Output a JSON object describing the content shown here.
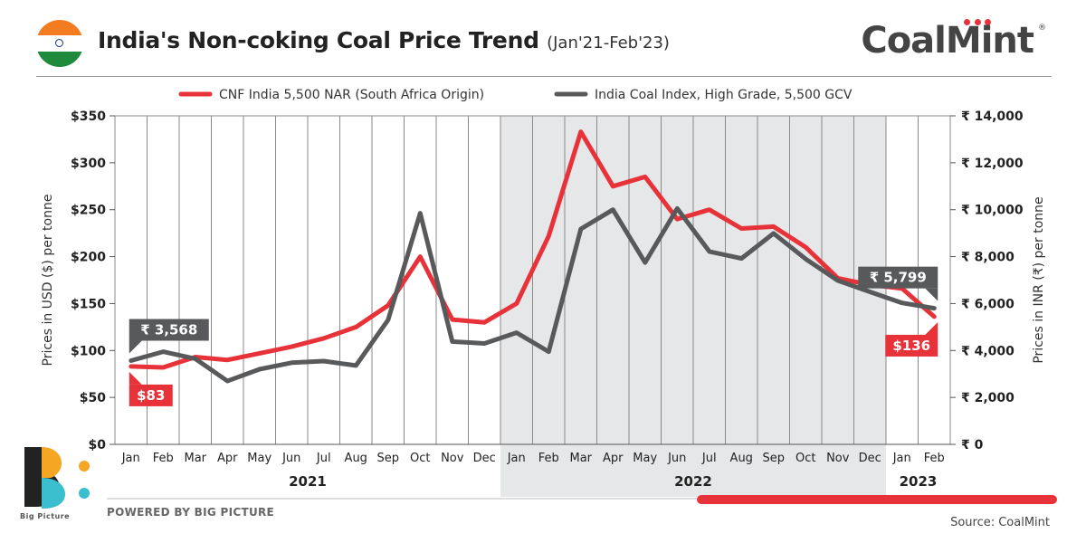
{
  "header": {
    "title": "India's Non-coking Coal Price Trend",
    "subtitle": "(Jan'21-Feb'23)",
    "brand": "CoalMint",
    "brand_mark": "®"
  },
  "footer": {
    "powered_by": "POWERED BY BIG PICTURE",
    "source": "Source: CoalMint",
    "logo_text": "Big Picture"
  },
  "colors": {
    "red": "#e8323a",
    "grey": "#58595b",
    "shade": "#e6e7e8",
    "grid": "#8a8a8a"
  },
  "chart_data": {
    "type": "line",
    "categories": [
      "Jan",
      "Feb",
      "Mar",
      "Apr",
      "May",
      "Jun",
      "Jul",
      "Aug",
      "Sep",
      "Oct",
      "Nov",
      "Dec",
      "Jan",
      "Feb",
      "Mar",
      "Apr",
      "May",
      "Jun",
      "Jul",
      "Aug",
      "Sep",
      "Oct",
      "Nov",
      "Dec",
      "Jan",
      "Feb"
    ],
    "year_groups": [
      {
        "label": "2021",
        "start": 0,
        "end": 11,
        "shaded": false
      },
      {
        "label": "2022",
        "start": 12,
        "end": 23,
        "shaded": true
      },
      {
        "label": "2023",
        "start": 24,
        "end": 25,
        "shaded": false
      }
    ],
    "ylabel_left": "Prices in USD ($) per tonne",
    "ylabel_right": "Prices in INR (₹) per tonne",
    "ylim_left": [
      0,
      350
    ],
    "ylim_right": [
      0,
      14000
    ],
    "yticks_left": [
      "$0",
      "$50",
      "$100",
      "$150",
      "$200",
      "$250",
      "$300",
      "$350"
    ],
    "yticks_right": [
      "₹ 0",
      "₹ 2,000",
      "₹ 4,000",
      "₹ 6,000",
      "₹ 8,000",
      "₹ 10,000",
      "₹ 12,000",
      "₹ 14,000"
    ],
    "grid": "vertical",
    "legend_position": "top",
    "series": [
      {
        "name": "CNF India 5,500 NAR (South Africa Origin)",
        "axis": "left",
        "color": "#e8323a",
        "values": [
          83,
          82,
          93,
          90,
          97,
          104,
          113,
          125,
          148,
          200,
          133,
          130,
          150,
          222,
          333,
          275,
          285,
          240,
          250,
          230,
          232,
          210,
          177,
          170,
          166,
          136
        ]
      },
      {
        "name": "India Coal Index, High Grade, 5,500 GCV",
        "axis": "right",
        "color": "#58595b",
        "values": [
          3568,
          3950,
          3650,
          2700,
          3200,
          3480,
          3550,
          3360,
          5300,
          9850,
          4380,
          4300,
          4760,
          3950,
          9180,
          10000,
          7750,
          10050,
          8220,
          7920,
          8990,
          7900,
          6980,
          6500,
          6030,
          5799
        ]
      }
    ],
    "annotations": [
      {
        "text": "₹ 3,568",
        "series": 1,
        "index": 0,
        "color": "#58595b",
        "position": "above"
      },
      {
        "text": "$83",
        "series": 0,
        "index": 0,
        "color": "#e8323a",
        "position": "below"
      },
      {
        "text": "₹ 5,799",
        "series": 1,
        "index": 25,
        "color": "#58595b",
        "position": "above"
      },
      {
        "text": "$136",
        "series": 0,
        "index": 25,
        "color": "#e8323a",
        "position": "below"
      }
    ]
  }
}
